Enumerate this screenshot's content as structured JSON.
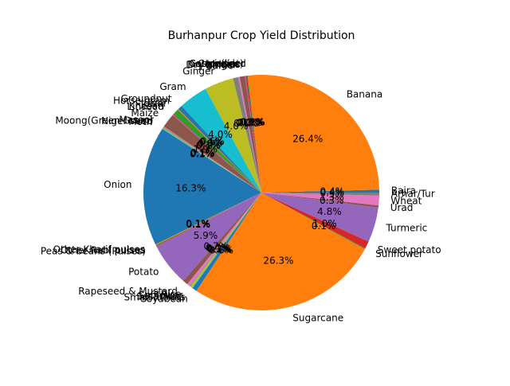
{
  "chart_data": {
    "type": "pie",
    "title": "Burhanpur Crop Yield Distribution",
    "start_angle_deg": 0,
    "counterclock": true,
    "label_format": "{pct:.1f}%",
    "palette": [
      "#1f77b4",
      "#ff7f0e",
      "#2ca02c",
      "#d62728",
      "#9467bd",
      "#8c564b",
      "#e377c2",
      "#7f7f7f",
      "#bcbd22",
      "#17becf"
    ],
    "slices": [
      {
        "label": "Bajra",
        "value": 0.4
      },
      {
        "label": "Banana",
        "value": 25.9
      },
      {
        "label": "Castor seed",
        "value": 0.1
      },
      {
        "label": "Coriander",
        "value": 0.2
      },
      {
        "label": "Cotton(lint)",
        "value": 0.1
      },
      {
        "label": "Dry chillies",
        "value": 0.7
      },
      {
        "label": "Dry ginger",
        "value": 0.2
      },
      {
        "label": "Garlic",
        "value": 0.7
      },
      {
        "label": "Ginger",
        "value": 3.9
      },
      {
        "label": "Gram",
        "value": 3.9
      },
      {
        "label": "Groundnut",
        "value": 0.6
      },
      {
        "label": "Horse-gram",
        "value": 0.1
      },
      {
        "label": "Jowar",
        "value": 0.8
      },
      {
        "label": "Khesari",
        "value": 0.1
      },
      {
        "label": "Linseed",
        "value": 0.1
      },
      {
        "label": "Maize",
        "value": 1.9
      },
      {
        "label": "Masoor",
        "value": 0.1
      },
      {
        "label": "Moong(Green Gram)",
        "value": 0.1
      },
      {
        "label": "Niger seed",
        "value": 0.1
      },
      {
        "label": "Moth",
        "value": 0.1
      },
      {
        "label": "Onion",
        "value": 16.0
      },
      {
        "label": "Other Kharif pulses",
        "value": 0.1
      },
      {
        "label": "Other Rabi pulses",
        "value": 0.1
      },
      {
        "label": "Peas & beans (Pulses)",
        "value": 0.1
      },
      {
        "label": "Potato",
        "value": 5.8
      },
      {
        "label": "Rapeseed & Mustard",
        "value": 0.7
      },
      {
        "label": "Rice",
        "value": 0.4
      },
      {
        "label": "Safflower",
        "value": 0.1
      },
      {
        "label": "Sesamum",
        "value": 0.3
      },
      {
        "label": "Small millets",
        "value": 0.1
      },
      {
        "label": "Soyabean",
        "value": 0.6
      },
      {
        "label": "Sugarcane",
        "value": 25.8
      },
      {
        "label": "Sunflower",
        "value": 0.1
      },
      {
        "label": "Sweet potato",
        "value": 1.0
      },
      {
        "label": "Turmeric",
        "value": 4.7
      },
      {
        "label": "Urad",
        "value": 0.3
      },
      {
        "label": "Wheat",
        "value": 1.3
      },
      {
        "label": "Arhar/Tur",
        "value": 0.4
      }
    ]
  }
}
